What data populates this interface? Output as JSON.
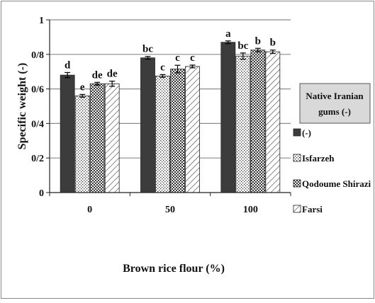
{
  "chart_data": {
    "type": "bar",
    "title": "",
    "xlabel": "Brown rice flour (%)",
    "ylabel": "Specific weight (-)",
    "ylim": [
      0,
      1
    ],
    "yticks": [
      "0",
      "0/2",
      "0/4",
      "0/6",
      "0/8",
      "1"
    ],
    "categories": [
      "0",
      "50",
      "100"
    ],
    "legend_title": "Native Iranian gums (-)",
    "legend_position": "right",
    "grid": true,
    "series": [
      {
        "name": "(-)",
        "values": [
          0.68,
          0.78,
          0.87
        ],
        "errors": [
          0.015,
          0.008,
          0.008
        ],
        "letters": [
          "d",
          "bc",
          "a"
        ],
        "pattern": "solid-dark"
      },
      {
        "name": "Isfarzeh",
        "values": [
          0.56,
          0.675,
          0.79
        ],
        "errors": [
          0.008,
          0.008,
          0.018
        ],
        "letters": [
          "e",
          "c",
          "bc"
        ],
        "pattern": "dots"
      },
      {
        "name": "Qodoume Shirazi",
        "values": [
          0.63,
          0.715,
          0.825
        ],
        "errors": [
          0.008,
          0.022,
          0.01
        ],
        "letters": [
          "de",
          "c",
          "b"
        ],
        "pattern": "checker"
      },
      {
        "name": "Farsi",
        "values": [
          0.63,
          0.73,
          0.815
        ],
        "errors": [
          0.015,
          0.008,
          0.01
        ],
        "letters": [
          "de",
          "c",
          "b"
        ],
        "pattern": "diagonal"
      }
    ]
  },
  "colors": {
    "gridline": "#8c8c8c",
    "bar_dark": "#3c3c3c",
    "legend_box_fill": "#d9d9d9"
  }
}
